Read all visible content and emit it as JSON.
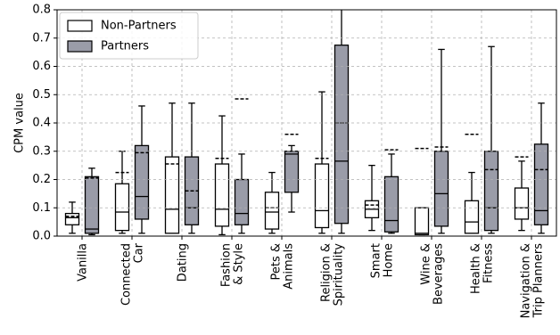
{
  "chart_data": {
    "type": "boxplot",
    "ylabel": "CPM value",
    "categories": [
      [
        "Vanilla"
      ],
      [
        "Connected",
        "Car"
      ],
      [
        "Dating"
      ],
      [
        "Fashion",
        "& Style"
      ],
      [
        "Pets &",
        "Animals"
      ],
      [
        "Religion &",
        "Spirituality"
      ],
      [
        "Smart",
        "Home"
      ],
      [
        "Wine &",
        "Beverages"
      ],
      [
        "Health &",
        "Fitness"
      ],
      [
        "Navigation &",
        "Trip Planners"
      ]
    ],
    "series": [
      {
        "name": "Non-Partners",
        "color": "#ffffff",
        "whislo": [
          0.01,
          0.01,
          0.01,
          0.005,
          0.01,
          0.01,
          0.02,
          0.005,
          0.01,
          0.02
        ],
        "q1": [
          0.04,
          0.02,
          0.01,
          0.035,
          0.025,
          0.03,
          0.065,
          0.005,
          0.01,
          0.06
        ],
        "med": [
          0.065,
          0.085,
          0.095,
          0.095,
          0.085,
          0.09,
          0.095,
          0.01,
          0.05,
          0.1
        ],
        "q3": [
          0.08,
          0.185,
          0.28,
          0.255,
          0.155,
          0.255,
          0.125,
          0.1,
          0.125,
          0.17
        ],
        "whishi": [
          0.12,
          0.3,
          0.47,
          0.425,
          0.225,
          0.51,
          0.25,
          0.1,
          0.225,
          0.265
        ],
        "mean": [
          0.07,
          0.225,
          0.255,
          0.275,
          0.1,
          0.275,
          0.11,
          0.31,
          0.36,
          0.28
        ]
      },
      {
        "name": "Partners",
        "color": "#9a9ca8",
        "whislo": [
          0.005,
          0.01,
          0.01,
          0.01,
          0.085,
          0.01,
          0.01,
          0.01,
          0.01,
          0.01
        ],
        "q1": [
          0.01,
          0.06,
          0.04,
          0.04,
          0.155,
          0.045,
          0.015,
          0.035,
          0.02,
          0.04
        ],
        "med": [
          0.025,
          0.14,
          0.1,
          0.08,
          0.29,
          0.265,
          0.055,
          0.15,
          0.1,
          0.09
        ],
        "q3": [
          0.21,
          0.32,
          0.28,
          0.2,
          0.3,
          0.675,
          0.21,
          0.3,
          0.3,
          0.325
        ],
        "whishi": [
          0.24,
          0.46,
          0.47,
          0.29,
          0.32,
          0.85,
          0.29,
          0.66,
          0.67,
          0.47
        ],
        "mean": [
          0.205,
          0.295,
          0.16,
          0.485,
          0.36,
          0.4,
          0.305,
          0.315,
          0.235,
          0.235
        ]
      }
    ],
    "ylim": [
      0,
      0.8
    ],
    "yticks": [
      {
        "value": 0,
        "label": "0.0"
      },
      0.1,
      0.2,
      0.3,
      0.4,
      0.5,
      0.6,
      0.7,
      0.8
    ],
    "grid": true,
    "legend": "upper left"
  }
}
